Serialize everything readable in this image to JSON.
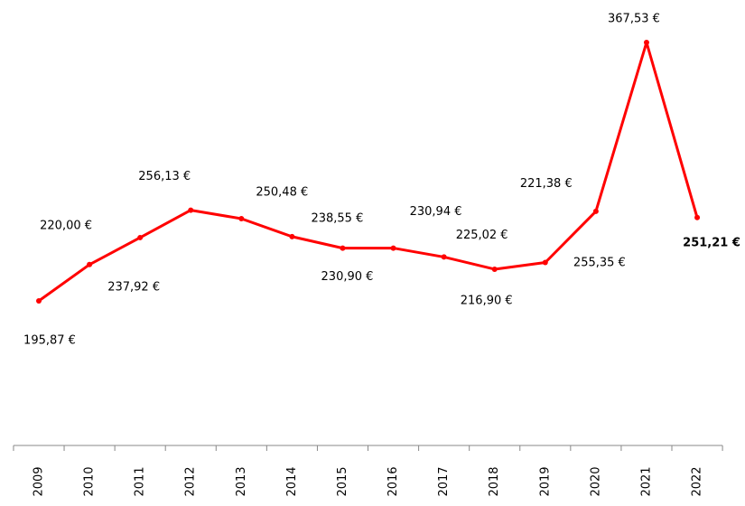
{
  "chart_data": {
    "type": "line",
    "categories": [
      "2009",
      "2010",
      "2011",
      "2012",
      "2013",
      "2014",
      "2015",
      "2016",
      "2017",
      "2018",
      "2019",
      "2020",
      "2021",
      "2022"
    ],
    "series": [
      {
        "color": "#ff0000",
        "values": [
          195.87,
          220.0,
          237.92,
          256.13,
          250.48,
          238.55,
          230.9,
          230.94,
          225.02,
          216.9,
          221.38,
          255.35,
          367.53,
          251.21
        ],
        "value_labels": [
          "195,87 €",
          "220,00 €",
          "237,92 €",
          "256,13 €",
          "250,48 €",
          "238,55 €",
          "230,90 €",
          "230,94 €",
          "225,02 €",
          "216,90 €",
          "221,38 €",
          "255,35 €",
          "367,53 €",
          "251,21 €"
        ]
      }
    ]
  }
}
